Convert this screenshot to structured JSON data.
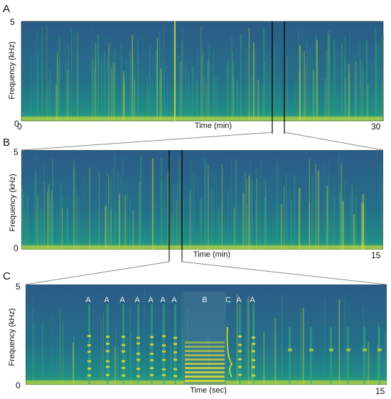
{
  "panels": [
    {
      "id": "A",
      "ylabel": "Frequency (kHz)",
      "xlabel": "Time (min)",
      "y_min": "0",
      "y_max": "5",
      "x_min": "0",
      "x_max": "30"
    },
    {
      "id": "B",
      "ylabel": "Frequency (kHz)",
      "xlabel": "Time (min)",
      "y_min": "0",
      "y_max": "5",
      "x_min": "",
      "x_max": "15"
    },
    {
      "id": "C",
      "ylabel": "Frequency (kHz)",
      "xlabel": "Time (sec)",
      "y_min": "0",
      "y_max": "5",
      "x_min": "",
      "x_max": "15",
      "annotations": [
        "A",
        "A",
        "A",
        "A",
        "A",
        "A",
        "A",
        "B",
        "C",
        "A",
        "A"
      ]
    }
  ],
  "colors": {
    "background": "#2b5c86",
    "low": "#1f8b86",
    "mid": "#3aa978",
    "high": "#e6e22a",
    "zoom_line": "#8a8a8a",
    "selection_line": "#000000"
  }
}
